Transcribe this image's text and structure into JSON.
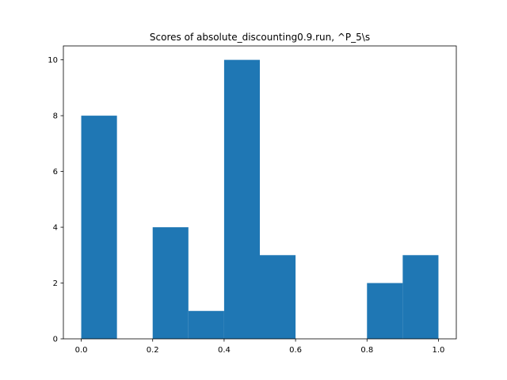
{
  "chart_data": {
    "type": "bar",
    "title": "Scores of absolute_discounting0.9.run, ^P_5\\s",
    "xlabel": "",
    "ylabel": "",
    "bin_edges": [
      0.0,
      0.1,
      0.2,
      0.3,
      0.4,
      0.5,
      0.6,
      0.7,
      0.8,
      0.9,
      1.0
    ],
    "values": [
      8,
      0,
      4,
      1,
      10,
      3,
      0,
      0,
      2,
      3
    ],
    "xlim": [
      -0.05,
      1.05
    ],
    "ylim": [
      0,
      10.5
    ],
    "xticks": [
      0.0,
      0.2,
      0.4,
      0.6,
      0.8,
      1.0
    ],
    "xtick_labels": [
      "0.0",
      "0.2",
      "0.4",
      "0.6",
      "0.8",
      "1.0"
    ],
    "yticks": [
      0,
      2,
      4,
      6,
      8,
      10
    ],
    "ytick_labels": [
      "0",
      "2",
      "4",
      "6",
      "8",
      "10"
    ],
    "bar_color": "#1f77b4",
    "grid": false,
    "legend": "none"
  }
}
